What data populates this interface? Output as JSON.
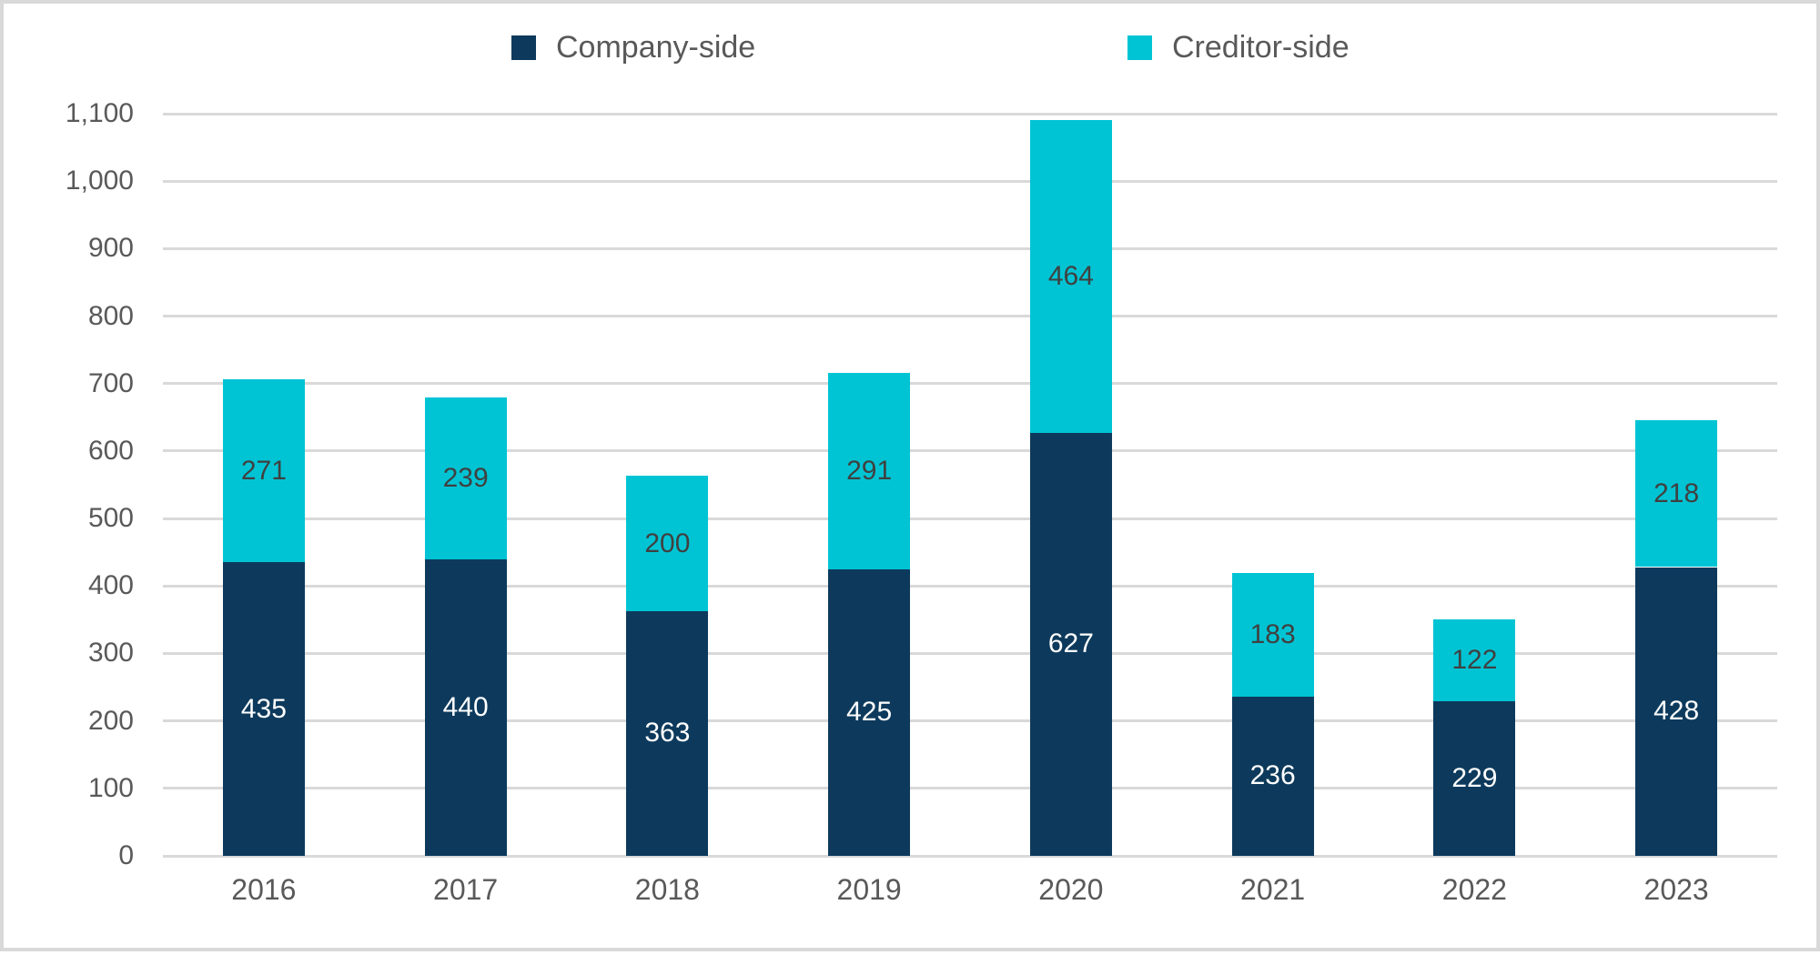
{
  "chart_data": {
    "type": "bar",
    "stacked": true,
    "categories": [
      "2016",
      "2017",
      "2018",
      "2019",
      "2020",
      "2021",
      "2022",
      "2023"
    ],
    "series": [
      {
        "name": "Company-side",
        "color": "#0d3a5c",
        "label_color": "#ffffff",
        "values": [
          435,
          440,
          363,
          425,
          627,
          236,
          229,
          428
        ]
      },
      {
        "name": "Creditor-side",
        "color": "#00c4d4",
        "label_color": "#404040",
        "values": [
          271,
          239,
          200,
          291,
          464,
          183,
          122,
          218
        ]
      }
    ],
    "totals": [
      706,
      679,
      563,
      716,
      1091,
      419,
      351,
      646
    ],
    "y_axis": {
      "min": 0,
      "max": 1100,
      "step": 100,
      "tick_labels": [
        "0",
        "100",
        "200",
        "300",
        "400",
        "500",
        "600",
        "700",
        "800",
        "900",
        "1,000",
        "1,100"
      ]
    },
    "grid": true,
    "legend_position": "top",
    "gridline_color": "#d9d9d9",
    "axis_text_color": "#595959"
  }
}
